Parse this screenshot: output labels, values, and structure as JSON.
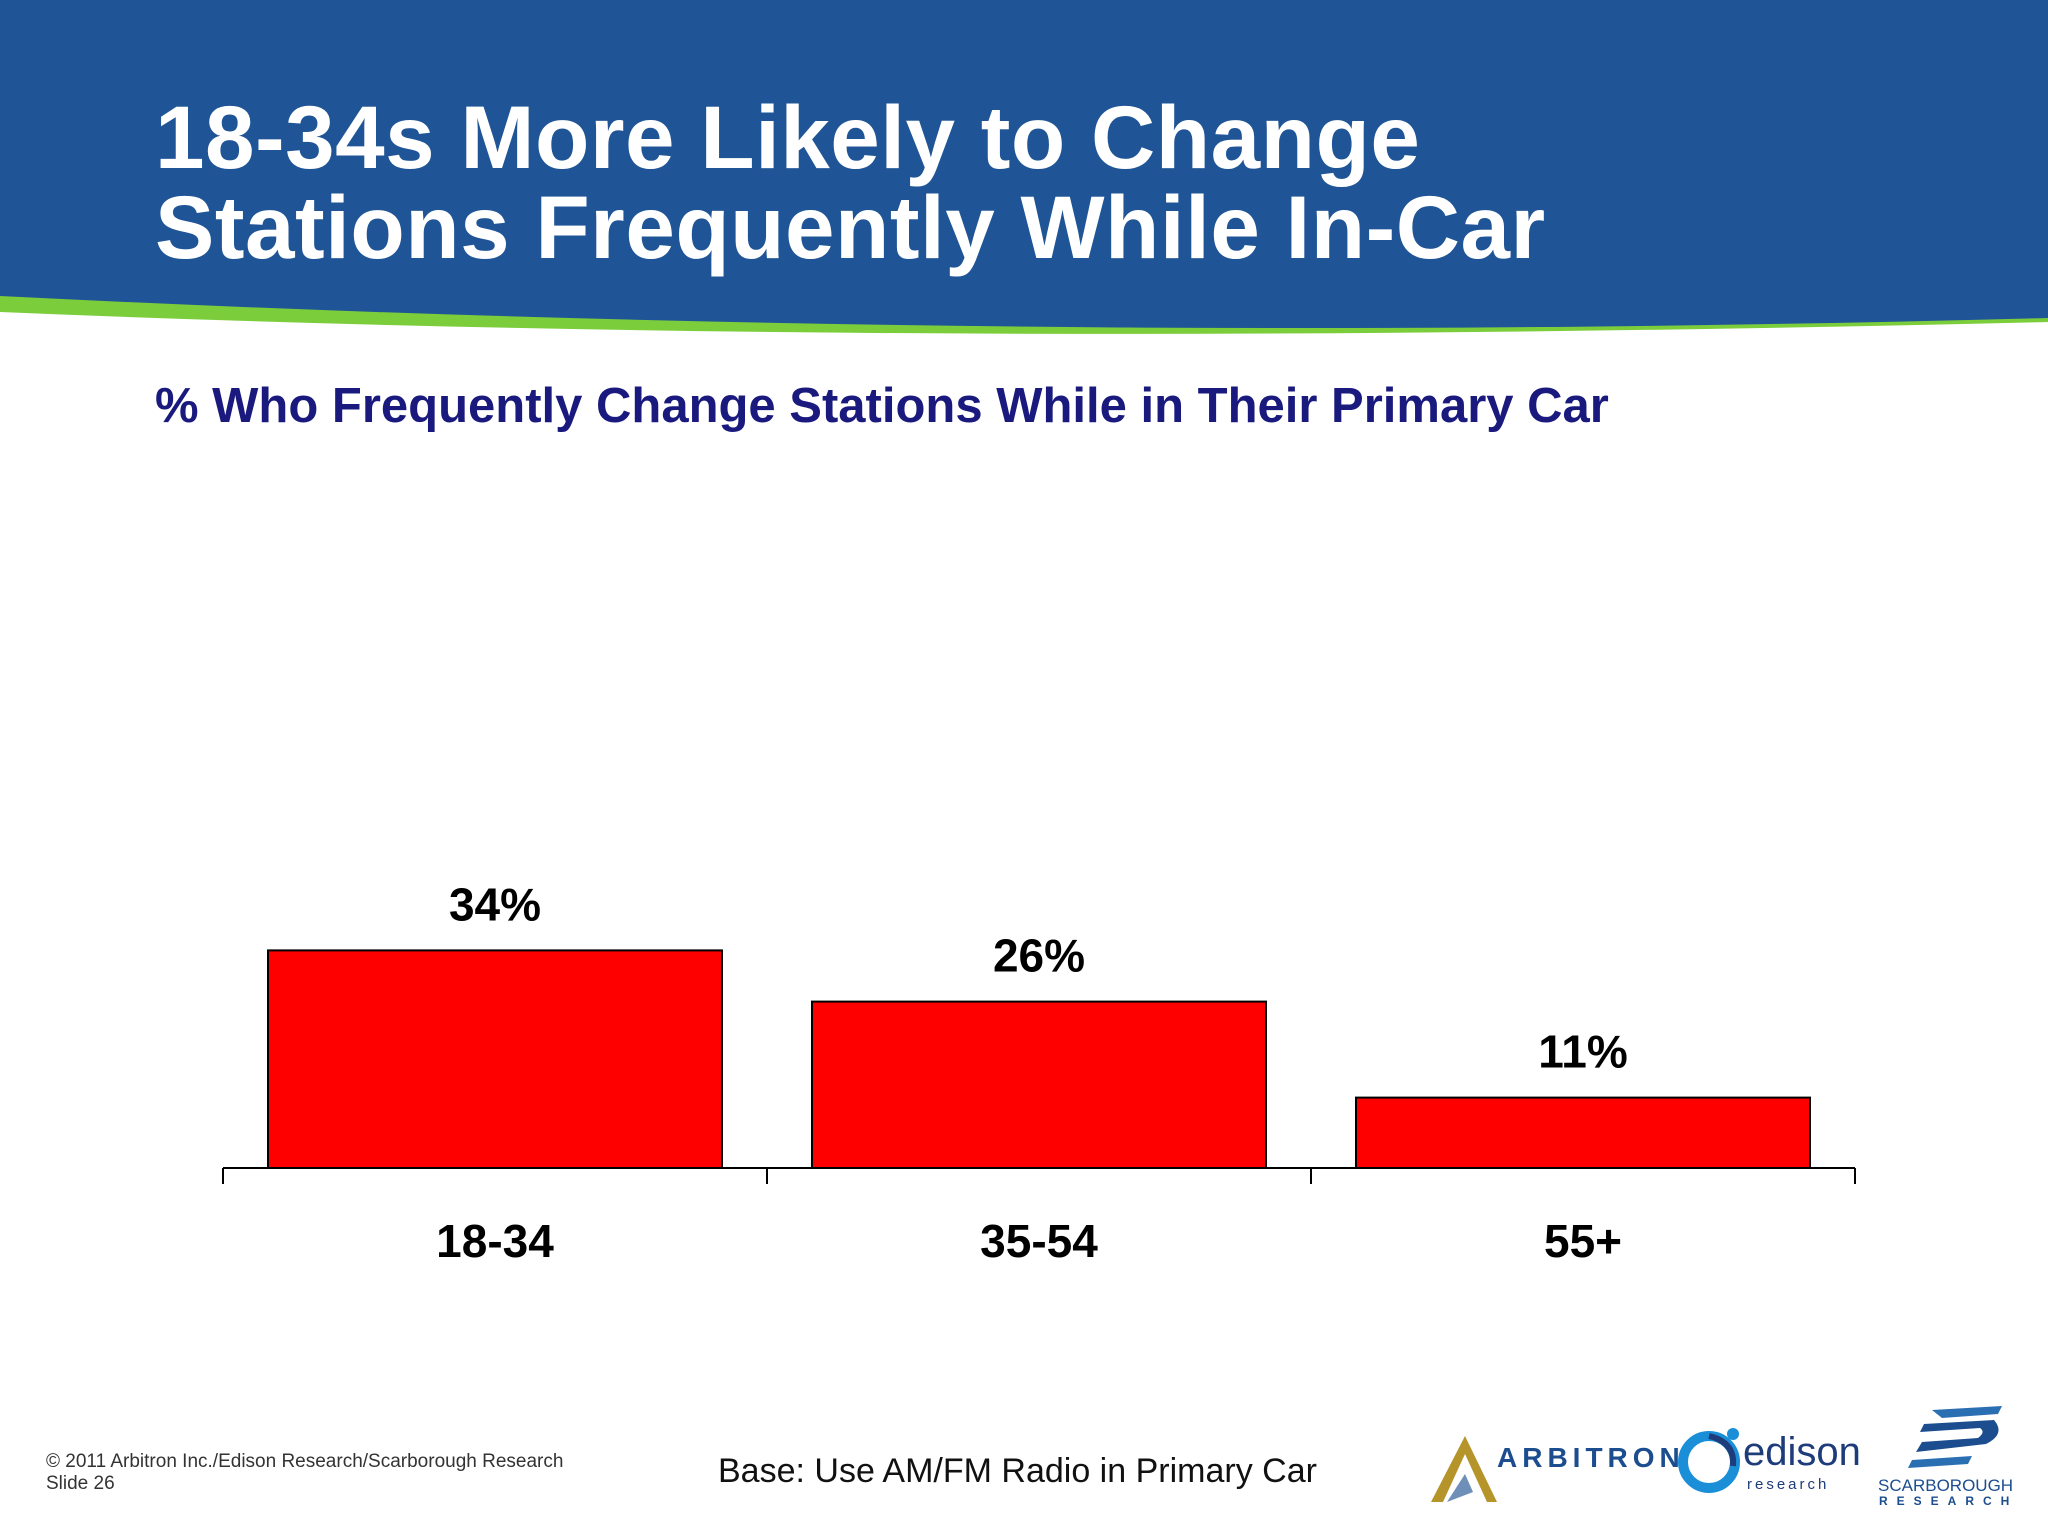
{
  "colors": {
    "header_blue": "#1f5596",
    "accent_green": "#7ccd3c",
    "bar_red": "#ff0000",
    "subtitle_navy": "#1a1a7e"
  },
  "slide": {
    "title_line1": "18-34s More Likely to Change",
    "title_line2": "Stations Frequently While In-Car"
  },
  "footer": {
    "copyright": "© 2011 Arbitron Inc./Edison Research/Scarborough Research",
    "slide_number": "Slide 26",
    "base_note": "Base: Use AM/FM Radio in Primary Car"
  },
  "logos": {
    "arbitron": "ARBITRON",
    "edison": "edison",
    "edison_sub": "research",
    "scarborough": "SCARBOROUGH",
    "scarborough_sub": "RESEARCH"
  },
  "chart_data": {
    "type": "bar",
    "title": "% Who Frequently Change Stations While in Their Primary Car",
    "categories": [
      "18-34",
      "35-54",
      "55+"
    ],
    "values": [
      34,
      26,
      11
    ],
    "data_labels": [
      "34%",
      "26%",
      "11%"
    ],
    "ylim": [
      0,
      100
    ],
    "grid": false,
    "legend": "none"
  }
}
